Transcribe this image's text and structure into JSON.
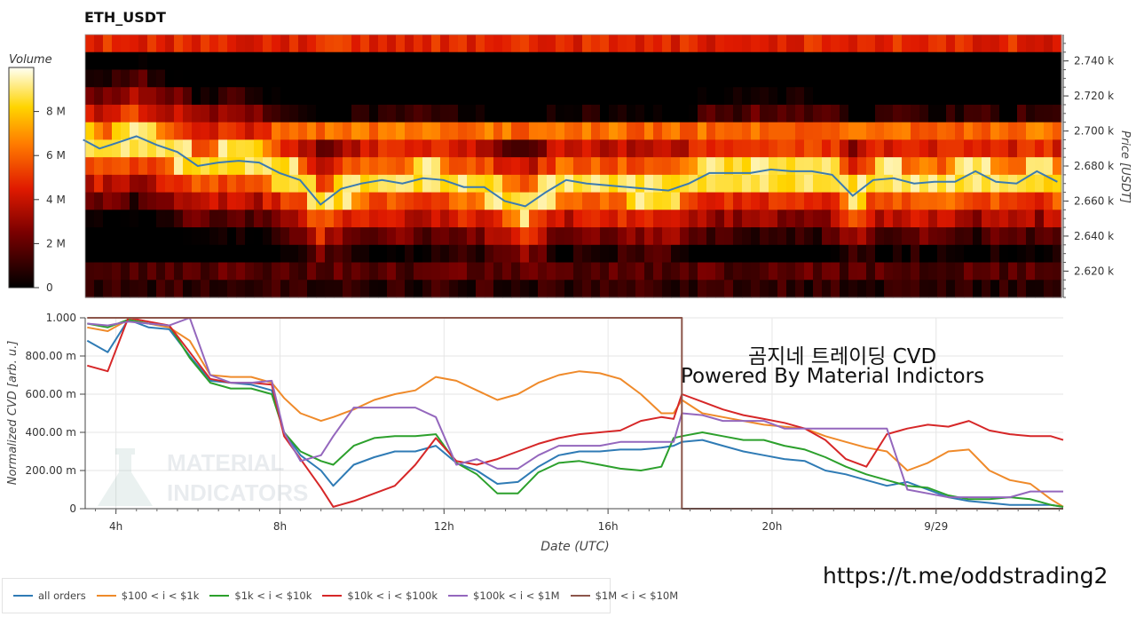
{
  "title": "ETH_USDT",
  "colorbar": {
    "label": "Volume",
    "ticks": [
      "8 M",
      "6 M",
      "4 M",
      "2 M",
      "0"
    ]
  },
  "heatmap_axis": {
    "label": "Price [USDT]",
    "ticks": [
      "2.740 k",
      "2.720 k",
      "2.700 k",
      "2.680 k",
      "2.660 k",
      "2.640 k",
      "2.620 k"
    ]
  },
  "cvd_axis": {
    "ylabel": "Normalized CVD [arb. u.]",
    "yticks": [
      "1.000",
      "800.00 m",
      "600.00 m",
      "400.00 m",
      "200.00 m",
      "0"
    ],
    "xlabel": "Date (UTC)",
    "xticks": [
      "4h",
      "8h",
      "12h",
      "16h",
      "20h",
      "9/29"
    ]
  },
  "overlay": {
    "line1": "곰지네 트레이딩 CVD",
    "line2": "Powered By Material Indictors",
    "link": "https://t.me/oddstrading2"
  },
  "watermark": {
    "line1": "MATERIAL",
    "line2": "INDICATORS"
  },
  "legend": [
    {
      "label": "all orders",
      "color": "#2f7bb5"
    },
    {
      "label": "$100 < i < $1k",
      "color": "#ef8a2a"
    },
    {
      "label": "$1k < i < $10k",
      "color": "#2ca02c"
    },
    {
      "label": "$10k < i < $100k",
      "color": "#d62728"
    },
    {
      "label": "$100k < i < $1M",
      "color": "#9467bd"
    },
    {
      "label": "$1M < i < $10M",
      "color": "#8c564b"
    }
  ],
  "chart_data": [
    {
      "type": "heatmap",
      "title": "ETH_USDT",
      "ylabel": "Price [USDT]",
      "ylim": [
        2605,
        2755
      ],
      "colorbar_label": "Volume",
      "colorbar_range": [
        0,
        10000000
      ],
      "price_line": {
        "color": "#3b7bb0",
        "x_hours": [
          3.2,
          3.6,
          4.0,
          4.5,
          5.0,
          5.5,
          6.0,
          6.5,
          7.0,
          7.5,
          8.0,
          8.5,
          9.0,
          9.5,
          10.0,
          10.5,
          11.0,
          11.5,
          12.0,
          12.5,
          13.0,
          13.5,
          14.0,
          14.5,
          15.0,
          15.5,
          16.0,
          16.5,
          17.0,
          17.5,
          18.0,
          18.5,
          19.0,
          19.5,
          20.0,
          20.5,
          21.0,
          21.5,
          22.0,
          22.5,
          23.0,
          23.5,
          24.0,
          24.5,
          25.0,
          25.5,
          26.0,
          26.5,
          27.0
        ],
        "y": [
          2695,
          2690,
          2693,
          2697,
          2692,
          2688,
          2680,
          2682,
          2683,
          2682,
          2676,
          2672,
          2658,
          2667,
          2670,
          2672,
          2670,
          2673,
          2672,
          2668,
          2668,
          2660,
          2657,
          2665,
          2672,
          2670,
          2669,
          2668,
          2667,
          2666,
          2670,
          2676,
          2676,
          2676,
          2678,
          2677,
          2677,
          2675,
          2663,
          2672,
          2673,
          2670,
          2671,
          2671,
          2677,
          2671,
          2670,
          2677,
          2671
        ]
      }
    },
    {
      "type": "line",
      "xlabel": "Date (UTC)",
      "ylabel": "Normalized CVD [arb. u.]",
      "xlim": [
        3.25,
        27.1
      ],
      "ylim": [
        0,
        1.0
      ],
      "x": [
        3.3,
        3.8,
        4.3,
        4.8,
        5.3,
        5.8,
        6.3,
        6.8,
        7.3,
        7.8,
        8.1,
        8.5,
        9.0,
        9.3,
        9.8,
        10.3,
        10.8,
        11.3,
        11.8,
        12.3,
        12.8,
        13.3,
        13.8,
        14.3,
        14.8,
        15.3,
        15.8,
        16.3,
        16.8,
        17.3,
        17.6,
        17.8,
        18.3,
        18.8,
        19.3,
        19.8,
        20.3,
        20.8,
        21.3,
        21.8,
        22.3,
        22.8,
        23.3,
        23.8,
        24.3,
        24.8,
        25.3,
        25.8,
        26.3,
        26.8,
        27.1
      ],
      "series": [
        {
          "name": "all orders",
          "values": [
            0.88,
            0.82,
            0.99,
            0.95,
            0.94,
            0.8,
            0.67,
            0.66,
            0.65,
            0.62,
            0.4,
            0.28,
            0.2,
            0.12,
            0.23,
            0.27,
            0.3,
            0.3,
            0.33,
            0.24,
            0.2,
            0.13,
            0.14,
            0.22,
            0.28,
            0.3,
            0.3,
            0.31,
            0.31,
            0.32,
            0.33,
            0.35,
            0.36,
            0.33,
            0.3,
            0.28,
            0.26,
            0.25,
            0.2,
            0.18,
            0.15,
            0.12,
            0.14,
            0.1,
            0.06,
            0.04,
            0.03,
            0.02,
            0.02,
            0.02,
            0.01
          ]
        },
        {
          "name": "$100 < i < $1k",
          "values": [
            0.95,
            0.93,
            0.99,
            0.97,
            0.95,
            0.88,
            0.7,
            0.69,
            0.69,
            0.66,
            0.58,
            0.5,
            0.46,
            0.48,
            0.52,
            0.57,
            0.6,
            0.62,
            0.69,
            0.67,
            0.62,
            0.57,
            0.6,
            0.66,
            0.7,
            0.72,
            0.71,
            0.68,
            0.6,
            0.5,
            0.5,
            0.57,
            0.5,
            0.48,
            0.46,
            0.44,
            0.43,
            0.42,
            0.38,
            0.35,
            0.32,
            0.3,
            0.2,
            0.24,
            0.3,
            0.31,
            0.2,
            0.15,
            0.13,
            0.05,
            0.01
          ]
        },
        {
          "name": "$1k < i < $10k",
          "values": [
            0.97,
            0.95,
            0.99,
            0.97,
            0.96,
            0.79,
            0.66,
            0.63,
            0.63,
            0.6,
            0.4,
            0.3,
            0.25,
            0.23,
            0.33,
            0.37,
            0.38,
            0.38,
            0.39,
            0.24,
            0.18,
            0.08,
            0.08,
            0.19,
            0.24,
            0.25,
            0.23,
            0.21,
            0.2,
            0.22,
            0.37,
            0.38,
            0.4,
            0.38,
            0.36,
            0.36,
            0.33,
            0.31,
            0.27,
            0.22,
            0.18,
            0.15,
            0.12,
            0.11,
            0.07,
            0.05,
            0.05,
            0.06,
            0.05,
            0.02,
            0.01
          ]
        },
        {
          "name": "$10k < i < $100k",
          "values": [
            0.75,
            0.72,
            1.0,
            0.98,
            0.96,
            0.82,
            0.68,
            0.66,
            0.66,
            0.65,
            0.38,
            0.26,
            0.11,
            0.01,
            0.04,
            0.08,
            0.12,
            0.23,
            0.37,
            0.25,
            0.23,
            0.26,
            0.3,
            0.34,
            0.37,
            0.39,
            0.4,
            0.41,
            0.46,
            0.48,
            0.47,
            0.6,
            0.56,
            0.52,
            0.49,
            0.47,
            0.45,
            0.42,
            0.36,
            0.26,
            0.22,
            0.39,
            0.42,
            0.44,
            0.43,
            0.46,
            0.41,
            0.39,
            0.38,
            0.38,
            0.36
          ]
        },
        {
          "name": "$100k < i < $1M",
          "values": [
            0.97,
            0.96,
            0.98,
            0.97,
            0.96,
            1.0,
            0.7,
            0.66,
            0.66,
            0.67,
            0.4,
            0.25,
            0.28,
            0.38,
            0.53,
            0.53,
            0.53,
            0.53,
            0.48,
            0.23,
            0.26,
            0.21,
            0.21,
            0.28,
            0.33,
            0.33,
            0.33,
            0.35,
            0.35,
            0.35,
            0.35,
            0.5,
            0.49,
            0.46,
            0.46,
            0.46,
            0.42,
            0.42,
            0.42,
            0.42,
            0.42,
            0.42,
            0.1,
            0.08,
            0.06,
            0.06,
            0.06,
            0.06,
            0.09,
            0.09,
            0.09
          ]
        },
        {
          "name": "$1M < i < $10M",
          "values": [
            1.0,
            1.0,
            1.0,
            1.0,
            1.0,
            1.0,
            1.0,
            1.0,
            1.0,
            1.0,
            1.0,
            1.0,
            1.0,
            1.0,
            1.0,
            1.0,
            1.0,
            1.0,
            1.0,
            1.0,
            1.0,
            1.0,
            1.0,
            1.0,
            1.0,
            1.0,
            1.0,
            1.0,
            1.0,
            1.0,
            1.0,
            0.0,
            0.0,
            0.0,
            0.0,
            0.0,
            0.0,
            0.0,
            0.0,
            0.0,
            0.0,
            0.0,
            0.0,
            0.0,
            0.0,
            0.0,
            0.0,
            0.0,
            0.0,
            0.0,
            0.0
          ]
        }
      ]
    }
  ]
}
